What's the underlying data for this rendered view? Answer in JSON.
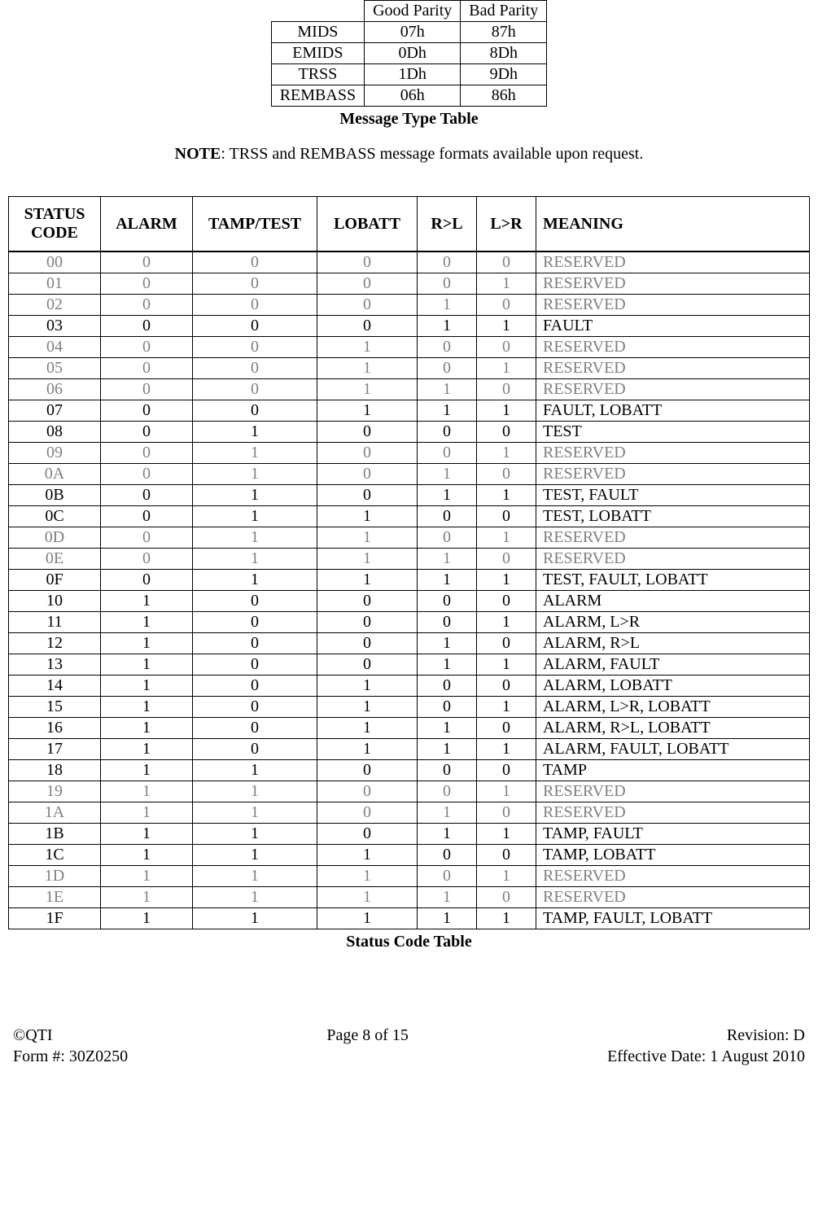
{
  "message_type_table": {
    "caption": "Message Type Table",
    "headers": [
      "",
      "Good Parity",
      "Bad Parity"
    ],
    "rows": [
      [
        "MIDS",
        "07h",
        "87h"
      ],
      [
        "EMIDS",
        "0Dh",
        "8Dh"
      ],
      [
        "TRSS",
        "1Dh",
        "9Dh"
      ],
      [
        "REMBASS",
        "06h",
        "86h"
      ]
    ]
  },
  "note": {
    "label": "NOTE",
    "text": ":  TRSS and REMBASS message formats available upon request."
  },
  "status_table": {
    "caption": "Status Code Table",
    "headers": [
      "STATUS CODE",
      "ALARM",
      "TAMP/TEST",
      "LOBATT",
      "R>L",
      "L>R",
      "MEANING"
    ],
    "col_widths": [
      "100px",
      "100px",
      "140px",
      "110px",
      "60px",
      "60px",
      "auto"
    ],
    "reserved_color": "#808080",
    "rows": [
      {
        "reserved": true,
        "cells": [
          "00",
          "0",
          "0",
          "0",
          "0",
          "0",
          "RESERVED"
        ]
      },
      {
        "reserved": true,
        "cells": [
          "01",
          "0",
          "0",
          "0",
          "0",
          "1",
          "RESERVED"
        ]
      },
      {
        "reserved": true,
        "cells": [
          "02",
          "0",
          "0",
          "0",
          "1",
          "0",
          "RESERVED"
        ]
      },
      {
        "reserved": false,
        "cells": [
          "03",
          "0",
          "0",
          "0",
          "1",
          "1",
          "FAULT"
        ]
      },
      {
        "reserved": true,
        "cells": [
          "04",
          "0",
          "0",
          "1",
          "0",
          "0",
          "RESERVED"
        ]
      },
      {
        "reserved": true,
        "cells": [
          "05",
          "0",
          "0",
          "1",
          "0",
          "1",
          "RESERVED"
        ]
      },
      {
        "reserved": true,
        "cells": [
          "06",
          "0",
          "0",
          "1",
          "1",
          "0",
          "RESERVED"
        ]
      },
      {
        "reserved": false,
        "cells": [
          "07",
          "0",
          "0",
          "1",
          "1",
          "1",
          "FAULT, LOBATT"
        ]
      },
      {
        "reserved": false,
        "cells": [
          "08",
          "0",
          "1",
          "0",
          "0",
          "0",
          "TEST"
        ]
      },
      {
        "reserved": true,
        "cells": [
          "09",
          "0",
          "1",
          "0",
          "0",
          "1",
          "RESERVED"
        ]
      },
      {
        "reserved": true,
        "cells": [
          "0A",
          "0",
          "1",
          "0",
          "1",
          "0",
          "RESERVED"
        ]
      },
      {
        "reserved": false,
        "cells": [
          "0B",
          "0",
          "1",
          "0",
          "1",
          "1",
          "TEST, FAULT"
        ]
      },
      {
        "reserved": false,
        "cells": [
          "0C",
          "0",
          "1",
          "1",
          "0",
          "0",
          "TEST, LOBATT"
        ]
      },
      {
        "reserved": true,
        "cells": [
          "0D",
          "0",
          "1",
          "1",
          "0",
          "1",
          "RESERVED"
        ]
      },
      {
        "reserved": true,
        "cells": [
          "0E",
          "0",
          "1",
          "1",
          "1",
          "0",
          "RESERVED"
        ]
      },
      {
        "reserved": false,
        "cells": [
          "0F",
          "0",
          "1",
          "1",
          "1",
          "1",
          "TEST, FAULT, LOBATT"
        ]
      },
      {
        "reserved": false,
        "cells": [
          "10",
          "1",
          "0",
          "0",
          "0",
          "0",
          "ALARM"
        ]
      },
      {
        "reserved": false,
        "cells": [
          "11",
          "1",
          "0",
          "0",
          "0",
          "1",
          "ALARM, L>R"
        ]
      },
      {
        "reserved": false,
        "cells": [
          "12",
          "1",
          "0",
          "0",
          "1",
          "0",
          "ALARM, R>L"
        ]
      },
      {
        "reserved": false,
        "cells": [
          "13",
          "1",
          "0",
          "0",
          "1",
          "1",
          "ALARM, FAULT"
        ]
      },
      {
        "reserved": false,
        "cells": [
          "14",
          "1",
          "0",
          "1",
          "0",
          "0",
          "ALARM, LOBATT"
        ]
      },
      {
        "reserved": false,
        "cells": [
          "15",
          "1",
          "0",
          "1",
          "0",
          "1",
          "ALARM, L>R, LOBATT"
        ]
      },
      {
        "reserved": false,
        "cells": [
          "16",
          "1",
          "0",
          "1",
          "1",
          "0",
          "ALARM, R>L, LOBATT"
        ]
      },
      {
        "reserved": false,
        "cells": [
          "17",
          "1",
          "0",
          "1",
          "1",
          "1",
          "ALARM, FAULT, LOBATT"
        ]
      },
      {
        "reserved": false,
        "cells": [
          "18",
          "1",
          "1",
          "0",
          "0",
          "0",
          "TAMP"
        ]
      },
      {
        "reserved": true,
        "cells": [
          "19",
          "1",
          "1",
          "0",
          "0",
          "1",
          "RESERVED"
        ]
      },
      {
        "reserved": true,
        "cells": [
          "1A",
          "1",
          "1",
          "0",
          "1",
          "0",
          "RESERVED"
        ]
      },
      {
        "reserved": false,
        "cells": [
          "1B",
          "1",
          "1",
          "0",
          "1",
          "1",
          "TAMP, FAULT"
        ]
      },
      {
        "reserved": false,
        "cells": [
          "1C",
          "1",
          "1",
          "1",
          "0",
          "0",
          "TAMP, LOBATT"
        ]
      },
      {
        "reserved": true,
        "cells": [
          "1D",
          "1",
          "1",
          "1",
          "0",
          "1",
          "RESERVED"
        ]
      },
      {
        "reserved": true,
        "cells": [
          "1E",
          "1",
          "1",
          "1",
          "1",
          "0",
          "RESERVED"
        ]
      },
      {
        "reserved": false,
        "cells": [
          "1F",
          "1",
          "1",
          "1",
          "1",
          "1",
          "TAMP, FAULT, LOBATT"
        ]
      }
    ]
  },
  "footer": {
    "left1": "©QTI",
    "left2": "Form #: 30Z0250",
    "center": "Page 8 of 15",
    "right1": "Revision: D",
    "right2": "Effective Date: 1 August 2010"
  }
}
